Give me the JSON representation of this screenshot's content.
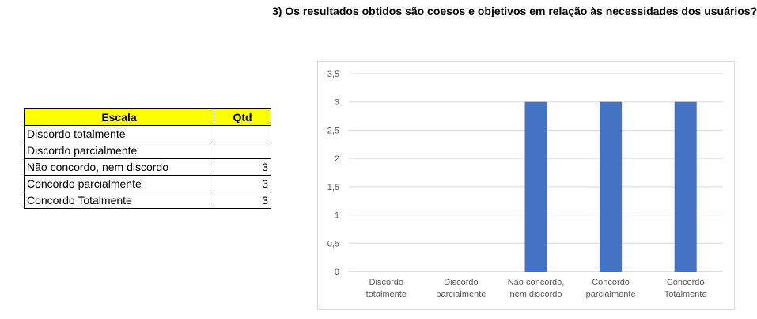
{
  "question": "3) Os resultados obtidos são coesos e objetivos em relação às necessidades dos usuários?",
  "table": {
    "headers": [
      "Escala",
      "Qtd"
    ],
    "rows": [
      {
        "escala": "Discordo totalmente",
        "qtd": ""
      },
      {
        "escala": "Discordo parcialmente",
        "qtd": ""
      },
      {
        "escala": "Não concordo, nem discordo",
        "qtd": "3"
      },
      {
        "escala": "Concordo parcialmente",
        "qtd": "3"
      },
      {
        "escala": "Concordo Totalmente",
        "qtd": "3"
      }
    ],
    "header_color": "#ffff00"
  },
  "chart_data": {
    "type": "bar",
    "categories": [
      [
        "Discordo",
        "totalmente"
      ],
      [
        "Discordo",
        "parcialmente"
      ],
      [
        "Não concordo,",
        "nem discordo"
      ],
      [
        "Concordo",
        "parcialmente"
      ],
      [
        "Concordo",
        "Totalmente"
      ]
    ],
    "values": [
      0,
      0,
      3,
      3,
      3
    ],
    "ylim": [
      0,
      3.5
    ],
    "yticks": [
      "0",
      "0,5",
      "1",
      "1,5",
      "2",
      "2,5",
      "3",
      "3,5"
    ],
    "grid": true,
    "legend": "none",
    "bar_color": "#4472c4",
    "title": "",
    "xlabel": "",
    "ylabel": ""
  }
}
